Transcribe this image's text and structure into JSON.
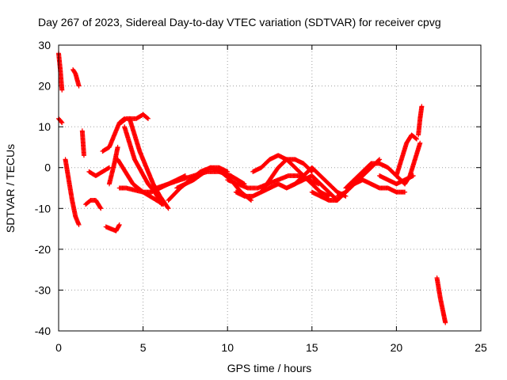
{
  "chart_data": {
    "type": "scatter",
    "title": "Day 267 of 2023, Sidereal Day-to-day VTEC variation (SDTVAR) for receiver cpvg",
    "xlabel": "GPS time / hours",
    "ylabel": "SDTVAR / TECUs",
    "xlim": [
      0,
      25
    ],
    "ylim": [
      -40,
      30
    ],
    "xticks": [
      0,
      5,
      10,
      15,
      20,
      25
    ],
    "yticks": [
      -40,
      -30,
      -20,
      -10,
      0,
      10,
      20,
      30
    ],
    "grid": true,
    "marker": "plus",
    "series": [
      {
        "name": "SDTVAR",
        "color": "#ff0000",
        "tracks": [
          {
            "x": [
              0.0,
              0.1,
              0.2
            ],
            "y": [
              28,
              24,
              19
            ]
          },
          {
            "x": [
              0.0,
              0.1,
              0.2
            ],
            "y": [
              12,
              11.5,
              11
            ]
          },
          {
            "x": [
              0.4,
              0.6,
              0.8,
              1.0,
              1.2
            ],
            "y": [
              2,
              -3,
              -8,
              -12,
              -14
            ]
          },
          {
            "x": [
              0.85,
              1.0,
              1.2
            ],
            "y": [
              24,
              23,
              20
            ]
          },
          {
            "x": [
              1.4,
              1.5
            ],
            "y": [
              9,
              3
            ]
          },
          {
            "x": [
              1.6,
              1.9,
              2.2,
              2.5
            ],
            "y": [
              -9,
              -8,
              -8,
              -10
            ]
          },
          {
            "x": [
              1.8,
              2.2,
              2.6,
              3.0
            ],
            "y": [
              -1,
              -2,
              -1,
              0
            ]
          },
          {
            "x": [
              2.8,
              3.1,
              3.4,
              3.6
            ],
            "y": [
              -14.5,
              -15,
              -15.5,
              -14
            ]
          },
          {
            "x": [
              2.6,
              3.0,
              3.3,
              3.6,
              3.9
            ],
            "y": [
              4,
              5,
              8,
              11,
              12
            ]
          },
          {
            "x": [
              3.0,
              3.3,
              3.5
            ],
            "y": [
              -4,
              1,
              5
            ]
          },
          {
            "x": [
              3.7,
              4.0,
              4.3,
              4.6,
              5.0,
              5.3
            ],
            "y": [
              11,
              12,
              12,
              12,
              13,
              12
            ]
          },
          {
            "x": [
              3.5,
              3.8,
              4.1,
              4.4,
              4.7,
              5.0,
              5.4,
              5.8,
              6.2
            ],
            "y": [
              2,
              0,
              -2,
              -4,
              -5,
              -6,
              -7,
              -8,
              -9
            ]
          },
          {
            "x": [
              3.9,
              4.2,
              4.5,
              4.9,
              5.3,
              5.7,
              6.1
            ],
            "y": [
              10,
              6,
              2,
              -1,
              -4,
              -6,
              -9
            ]
          },
          {
            "x": [
              4.2,
              4.5,
              4.8,
              5.2,
              5.6,
              6.0,
              6.5
            ],
            "y": [
              12,
              8,
              4,
              0,
              -4,
              -7,
              -10
            ]
          },
          {
            "x": [
              3.6,
              4.0,
              4.5,
              5.0,
              5.5,
              6.0,
              6.5,
              7.0,
              7.5
            ],
            "y": [
              -5,
              -5,
              -5.5,
              -6,
              -6,
              -5,
              -4,
              -3,
              -2
            ]
          },
          {
            "x": [
              7.0,
              7.5,
              8.0,
              8.5,
              9.0,
              9.5,
              10.0
            ],
            "y": [
              -5,
              -4,
              -3,
              -1.5,
              0,
              0,
              -1
            ]
          },
          {
            "x": [
              6.5,
              7.2,
              7.8,
              8.4,
              9.0,
              9.6,
              10.2,
              10.8,
              11.4
            ],
            "y": [
              -8,
              -5,
              -3,
              -1,
              0,
              -1,
              -3,
              -6,
              -8
            ]
          },
          {
            "x": [
              5.8,
              6.5,
              7.2,
              8.0,
              8.8,
              9.5,
              10.2,
              11.0
            ],
            "y": [
              -5,
              -4,
              -3,
              -2,
              -1,
              -1,
              -2,
              -4
            ]
          },
          {
            "x": [
              10.0,
              10.6,
              11.2,
              11.8,
              12.4,
              13.0,
              13.6,
              14.2,
              14.8,
              15.4
            ],
            "y": [
              -3,
              -4,
              -5,
              -5,
              -4,
              -3,
              -2,
              -2,
              -3,
              -4
            ]
          },
          {
            "x": [
              10.5,
              11.0,
              11.5,
              12.0,
              12.5,
              13.0,
              13.5,
              14.0,
              14.5,
              15.0
            ],
            "y": [
              -6,
              -7,
              -7,
              -6,
              -3,
              0,
              2,
              2,
              1,
              -1
            ]
          },
          {
            "x": [
              11.5,
              12.0,
              12.5,
              13.0,
              13.5,
              14.0,
              14.5,
              15.0,
              15.5,
              16.0
            ],
            "y": [
              -1,
              0,
              2,
              3,
              2,
              0,
              -2,
              -4,
              -6,
              -7
            ]
          },
          {
            "x": [
              12.0,
              12.5,
              13.0,
              13.5,
              14.0,
              14.5,
              15.0,
              15.5,
              16.0,
              16.5
            ],
            "y": [
              -6,
              -5,
              -4,
              -5,
              -4,
              -3,
              -2,
              -4,
              -6,
              -8
            ]
          },
          {
            "x": [
              13.5,
              14.0,
              14.5,
              15.0,
              15.5,
              16.0,
              16.5,
              17.0
            ],
            "y": [
              -5,
              -4,
              -2,
              0,
              -2,
              -4,
              -6,
              -7
            ]
          },
          {
            "x": [
              15.0,
              15.5,
              16.0,
              16.5,
              17.0,
              17.5,
              18.0
            ],
            "y": [
              -6,
              -7,
              -8,
              -8,
              -6,
              -4,
              -3
            ]
          },
          {
            "x": [
              16.5,
              17.0,
              17.5,
              18.0,
              18.5,
              19.0
            ],
            "y": [
              -7,
              -6,
              -4,
              -2,
              0,
              2
            ]
          },
          {
            "x": [
              17.0,
              17.5,
              18.0,
              18.5,
              19.0,
              19.5,
              20.0,
              20.5
            ],
            "y": [
              -5,
              -3,
              -1,
              1,
              1,
              0,
              -2,
              -4
            ]
          },
          {
            "x": [
              18.0,
              18.5,
              19.0,
              19.5,
              20.0,
              20.5
            ],
            "y": [
              -3,
              -4,
              -5,
              -5,
              -6,
              -6
            ]
          },
          {
            "x": [
              19.0,
              19.5,
              20.0,
              20.5,
              21.0
            ],
            "y": [
              -2,
              -3,
              -4,
              -3,
              -2
            ]
          },
          {
            "x": [
              20.0,
              20.3,
              20.6,
              20.9,
              21.2
            ],
            "y": [
              -2,
              2,
              6,
              8,
              7
            ]
          },
          {
            "x": [
              20.5,
              20.8,
              21.1,
              21.4
            ],
            "y": [
              -4,
              -2,
              2,
              6
            ]
          },
          {
            "x": [
              21.3,
              21.4,
              21.5
            ],
            "y": [
              8,
              12,
              15
            ]
          },
          {
            "x": [
              22.4,
              22.6,
              22.8,
              22.9
            ],
            "y": [
              -27,
              -32,
              -36,
              -38
            ]
          }
        ]
      }
    ]
  }
}
